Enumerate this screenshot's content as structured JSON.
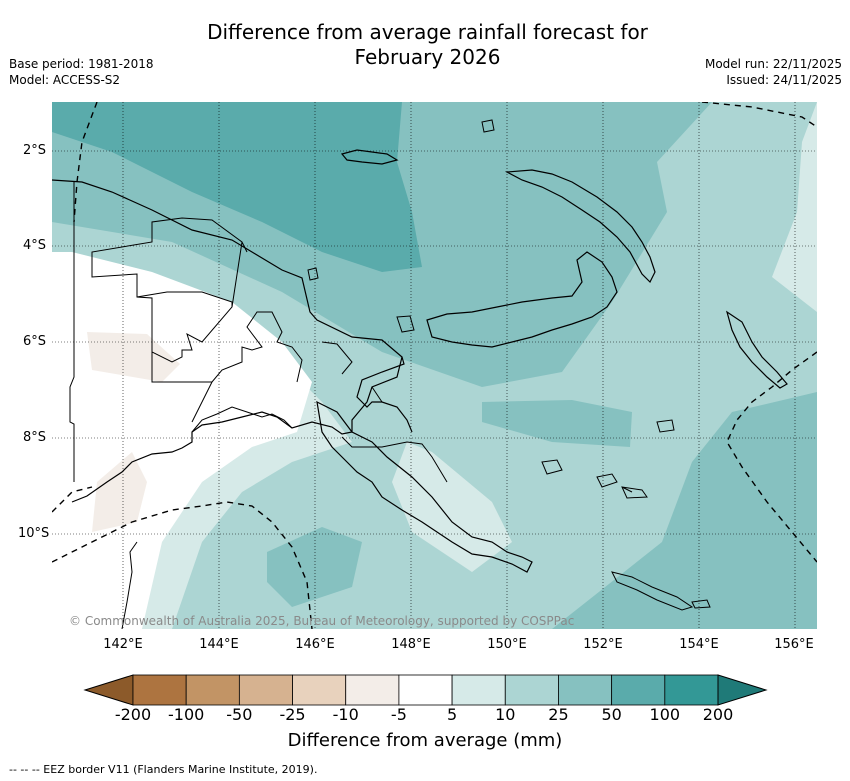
{
  "title_line1": "Difference from average rainfall forecast for",
  "title_line2": "February 2026",
  "base_period": "Base period: 1981-2018",
  "model": "Model: ACCESS-S2",
  "model_run": "Model run: 22/11/2025",
  "issued": "Issued: 24/11/2025",
  "copyright": "© Commonwealth of Australia 2025, Bureau of Meteorology, supported by COSPPac",
  "lon_labels": [
    "142°E",
    "144°E",
    "146°E",
    "148°E",
    "150°E",
    "152°E",
    "154°E",
    "156°E"
  ],
  "lat_labels": [
    "2°S",
    "4°S",
    "6°S",
    "8°S",
    "10°S"
  ],
  "legend": {
    "title": "Difference from average (mm)",
    "ticks": [
      "-200",
      "-100",
      "-50",
      "-25",
      "-10",
      "-5",
      "5",
      "10",
      "25",
      "50",
      "100",
      "200"
    ],
    "colors": [
      "#8c5a2a",
      "#ad7440",
      "#c29465",
      "#d6b290",
      "#e8d2bd",
      "#f3ede8",
      "#ffffff",
      "#d6eae8",
      "#acd5d3",
      "#86c1c0",
      "#5aabab",
      "#339896",
      "#1f7a78"
    ]
  },
  "footnote": "--  --  -- EEZ border V11 (Flanders Marine Institute, 2019)."
}
